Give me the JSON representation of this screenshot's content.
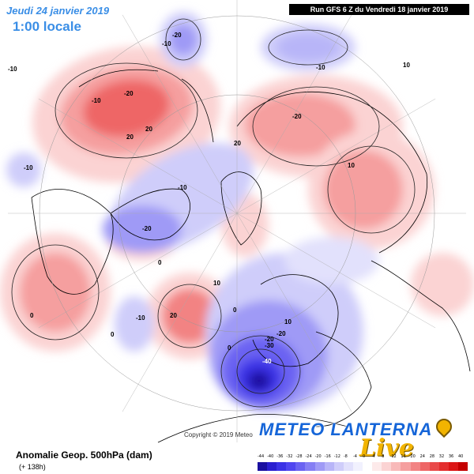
{
  "header": {
    "date": "Jeudi 24 janvier 2019",
    "time": "1:00 locale",
    "run": "Run GFS 6 Z du Vendredi 18 janvier 2019"
  },
  "footer": {
    "caption": "Anomalie Geop. 500hPa (dam)",
    "lead": "(+ 138h)",
    "copyright": "Copyright © 2019 Meteo",
    "logo_main": "METEO LANTERNA",
    "logo_sub": "Live"
  },
  "legend": {
    "ticks": [
      "-44",
      "-40",
      "-36",
      "-32",
      "-28",
      "-24",
      "-20",
      "-16",
      "-12",
      "-8",
      "-4",
      "0",
      "4",
      "8",
      "12",
      "16",
      "20",
      "24",
      "28",
      "32",
      "36",
      "40"
    ],
    "colors": [
      "#1a10a0",
      "#2a1fd0",
      "#3b32e6",
      "#5046f0",
      "#6a62f2",
      "#857ef4",
      "#9f9af6",
      "#b8b5f8",
      "#cfcdfa",
      "#e2e1fc",
      "#f1f1fe",
      "#ffffff",
      "#fdeaea",
      "#fbd3d3",
      "#f8b9b9",
      "#f59f9f",
      "#f28383",
      "#ee6666",
      "#e94a4a",
      "#e42e2e",
      "#dc1616",
      "#c40000"
    ]
  },
  "contour_labels": [
    "-20",
    "-10",
    "-20",
    "-10",
    "20",
    "20",
    "-20",
    "-10",
    "10",
    "-10",
    "-20",
    "-10",
    "10",
    "20",
    "-10",
    "20",
    "-10",
    "-20",
    "-30",
    "-40",
    "0",
    "0",
    "0",
    "0",
    "0",
    "10",
    "10",
    "-20"
  ],
  "colors": {
    "title": "#3a8ee6",
    "positive": "#ee5a5a",
    "negative": "#3c32e4"
  }
}
